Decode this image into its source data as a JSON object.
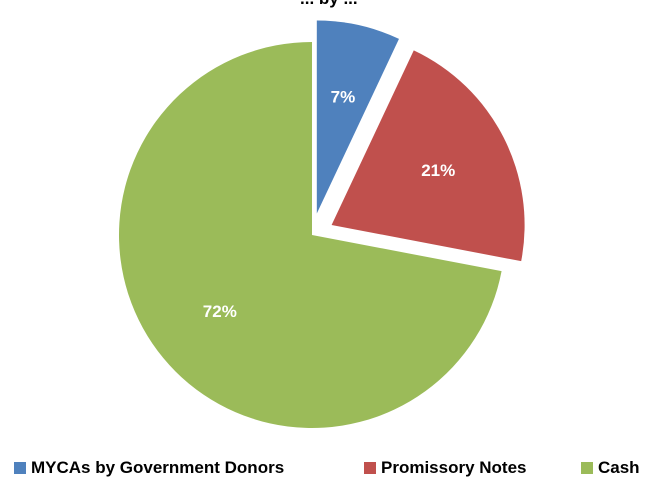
{
  "chart_data": {
    "type": "pie",
    "title": "... by ...",
    "slices": [
      {
        "label": "MYCAs by Government Donors",
        "value": 7,
        "display": "7%",
        "color": "#4f81bd",
        "exploded": true
      },
      {
        "label": "Promissory Notes",
        "value": 21,
        "display": "21%",
        "color": "#c0504d",
        "exploded": true
      },
      {
        "label": "Cash",
        "value": 72,
        "display": "72%",
        "color": "#9bbb59",
        "exploded": false
      }
    ],
    "legend_position": "bottom"
  }
}
